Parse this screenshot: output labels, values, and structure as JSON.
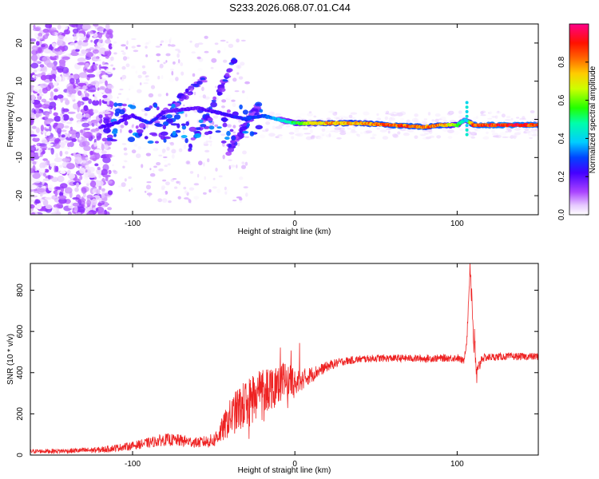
{
  "title": "S233.2026.068.07.01.C44",
  "chart_data": [
    {
      "type": "heatmap",
      "xlabel": "Height of straight line (km)",
      "ylabel": "Frequency (Hz)",
      "xlim": [
        -163,
        150
      ],
      "ylim": [
        -25,
        25
      ],
      "xticks": [
        -100,
        0,
        100
      ],
      "yticks": [
        -20,
        -10,
        0,
        10,
        20
      ],
      "colorbar": {
        "label": "Normalized spectral amplitude",
        "range": [
          0,
          1
        ],
        "ticks": [
          0.0,
          0.2,
          0.4,
          0.6,
          0.8
        ],
        "colors": [
          "#ffffff",
          "#cc88ff",
          "#8800ff",
          "#0000ff",
          "#00ffff",
          "#00ff00",
          "#ffff00",
          "#ff8800",
          "#ff0000",
          "#ff0088"
        ]
      },
      "ridge": {
        "description_points_x": [
          -120,
          -110,
          -100,
          -90,
          -80,
          -60,
          -40,
          -30,
          -20,
          -10,
          0,
          10,
          20,
          40,
          60,
          80,
          90,
          100,
          105,
          110,
          130,
          150
        ],
        "freq_y": [
          -2,
          -1,
          1,
          -1,
          2,
          3,
          1,
          0,
          1,
          0,
          -1,
          -1,
          -1,
          -1,
          -1.5,
          -2,
          -1.5,
          -1.5,
          0,
          -1.5,
          -1.5,
          -1.5
        ],
        "amplitude": [
          0.2,
          0.25,
          0.2,
          0.3,
          0.2,
          0.2,
          0.25,
          0.3,
          0.3,
          0.4,
          0.55,
          0.7,
          0.8,
          0.8,
          0.9,
          0.85,
          0.85,
          0.6,
          0.4,
          0.9,
          0.95,
          0.9
        ]
      },
      "bands": [
        {
          "name": "diagonal-band-1",
          "x": [
            -85,
            -55
          ],
          "y": [
            0,
            11
          ]
        },
        {
          "name": "diagonal-band-2",
          "x": [
            -65,
            -35
          ],
          "y": [
            -8,
            17
          ]
        },
        {
          "name": "diagonal-band-3",
          "x": [
            -42,
            -22
          ],
          "y": [
            -9,
            4
          ]
        }
      ]
    },
    {
      "type": "line",
      "xlabel": "Height of straight line (km)",
      "ylabel": "SNR (10 * v/v)",
      "xlim": [
        -163,
        150
      ],
      "ylim": [
        0,
        930
      ],
      "xticks": [
        -100,
        0,
        100
      ],
      "yticks": [
        0,
        200,
        400,
        600,
        800
      ],
      "color": "#ee2222",
      "x": [
        -163,
        -140,
        -120,
        -100,
        -90,
        -80,
        -70,
        -60,
        -50,
        -45,
        -40,
        -35,
        -30,
        -25,
        -20,
        -15,
        -10,
        -5,
        0,
        5,
        10,
        15,
        20,
        25,
        30,
        40,
        50,
        60,
        70,
        80,
        90,
        100,
        104,
        106,
        108,
        110,
        112,
        115,
        120,
        130,
        140,
        150
      ],
      "y": [
        18,
        20,
        25,
        45,
        60,
        75,
        70,
        60,
        70,
        120,
        180,
        220,
        250,
        290,
        320,
        330,
        360,
        370,
        345,
        370,
        390,
        410,
        430,
        445,
        455,
        465,
        470,
        470,
        470,
        468,
        470,
        472,
        455,
        560,
        930,
        600,
        380,
        470,
        475,
        478,
        478,
        478
      ],
      "noise_amp": [
        10,
        12,
        15,
        20,
        25,
        30,
        30,
        25,
        35,
        60,
        90,
        110,
        120,
        130,
        120,
        110,
        100,
        80,
        70,
        50,
        40,
        30,
        25,
        22,
        20,
        18,
        18,
        18,
        18,
        18,
        18,
        18,
        18,
        18,
        40,
        120,
        60,
        20,
        18,
        18,
        18,
        18
      ]
    }
  ]
}
